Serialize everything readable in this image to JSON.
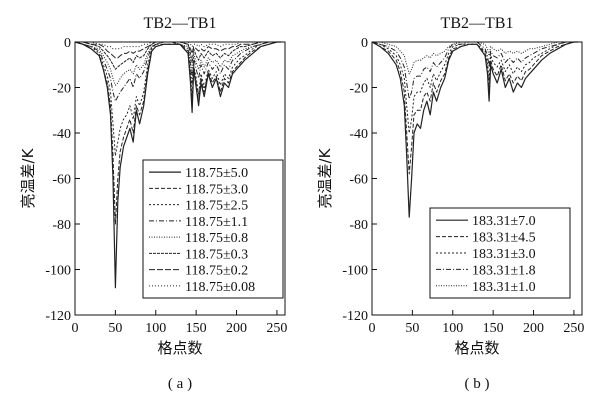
{
  "chart_data": [
    {
      "type": "line",
      "title": "TB2—TB1",
      "xlabel": "格点数",
      "ylabel": "亮温差/K",
      "caption": "( a )",
      "xlim": [
        0,
        260
      ],
      "ylim": [
        -120,
        0
      ],
      "xticks": [
        "0",
        "50",
        "100",
        "150",
        "200",
        "250"
      ],
      "yticks": [
        "0",
        "-20",
        "-40",
        "-60",
        "-80",
        "-100",
        "-120"
      ],
      "legend_position": "right",
      "x": [
        0,
        10,
        20,
        30,
        35,
        40,
        44,
        47,
        50,
        53,
        56,
        60,
        64,
        68,
        72,
        76,
        80,
        85,
        90,
        95,
        100,
        110,
        120,
        130,
        140,
        143,
        145,
        147,
        150,
        153,
        156,
        160,
        165,
        170,
        175,
        180,
        185,
        190,
        195,
        200,
        205,
        210,
        220,
        230,
        240,
        250,
        255
      ],
      "series": [
        {
          "name": "118.75±5.0",
          "values": [
            0,
            -1,
            -3,
            -6,
            -12,
            -20,
            -32,
            -60,
            -108,
            -70,
            -55,
            -46,
            -42,
            -38,
            -44,
            -30,
            -36,
            -28,
            -14,
            -4,
            -2,
            -1,
            -1,
            -1,
            -5,
            -18,
            -31,
            -12,
            -20,
            -28,
            -18,
            -24,
            -14,
            -20,
            -16,
            -24,
            -18,
            -20,
            -14,
            -12,
            -10,
            -8,
            -5,
            -2,
            -1,
            0,
            0
          ]
        },
        {
          "name": "118.75±3.0",
          "values": [
            0,
            -1,
            -3,
            -6,
            -12,
            -18,
            -28,
            -50,
            -80,
            -60,
            -48,
            -42,
            -38,
            -34,
            -40,
            -28,
            -32,
            -26,
            -12,
            -4,
            -2,
            -1,
            -1,
            -1,
            -5,
            -16,
            -28,
            -11,
            -18,
            -26,
            -16,
            -22,
            -13,
            -18,
            -15,
            -22,
            -16,
            -18,
            -13,
            -11,
            -9,
            -7,
            -4,
            -2,
            -1,
            0,
            0
          ]
        },
        {
          "name": "118.75±2.5",
          "values": [
            0,
            -1,
            -2,
            -5,
            -10,
            -15,
            -22,
            -36,
            -50,
            -44,
            -38,
            -34,
            -32,
            -28,
            -34,
            -24,
            -28,
            -22,
            -10,
            -3,
            -1,
            -1,
            -1,
            -1,
            -4,
            -14,
            -25,
            -10,
            -16,
            -23,
            -14,
            -20,
            -12,
            -16,
            -13,
            -19,
            -14,
            -16,
            -11,
            -9,
            -7,
            -6,
            -3,
            -1,
            0,
            0,
            0
          ]
        },
        {
          "name": "118.75±1.1",
          "values": [
            0,
            -1,
            -2,
            -4,
            -8,
            -12,
            -16,
            -22,
            -26,
            -24,
            -22,
            -20,
            -18,
            -16,
            -20,
            -14,
            -16,
            -13,
            -7,
            -2,
            -1,
            0,
            0,
            -1,
            -3,
            -10,
            -18,
            -7,
            -12,
            -16,
            -10,
            -14,
            -9,
            -12,
            -10,
            -14,
            -10,
            -12,
            -8,
            -7,
            -5,
            -4,
            -2,
            -1,
            0,
            0,
            0
          ]
        },
        {
          "name": "118.75±0.8",
          "values": [
            0,
            -1,
            -2,
            -3,
            -6,
            -9,
            -12,
            -16,
            -19,
            -18,
            -16,
            -14,
            -13,
            -12,
            -14,
            -10,
            -12,
            -10,
            -5,
            -2,
            -1,
            0,
            0,
            -1,
            -2,
            -8,
            -14,
            -5,
            -9,
            -12,
            -8,
            -11,
            -7,
            -9,
            -8,
            -11,
            -8,
            -9,
            -6,
            -5,
            -4,
            -3,
            -2,
            -1,
            0,
            0,
            0
          ]
        },
        {
          "name": "118.75±0.3",
          "values": [
            0,
            0,
            -1,
            -2,
            -4,
            -6,
            -8,
            -10,
            -12,
            -11,
            -10,
            -9,
            -8,
            -7,
            -9,
            -6,
            -7,
            -6,
            -3,
            -1,
            0,
            0,
            0,
            0,
            -1,
            -5,
            -9,
            -3,
            -6,
            -8,
            -5,
            -7,
            -4,
            -6,
            -5,
            -7,
            -5,
            -6,
            -4,
            -3,
            -2,
            -2,
            -1,
            0,
            0,
            0,
            0
          ]
        },
        {
          "name": "118.75±0.2",
          "values": [
            0,
            0,
            -1,
            -1,
            -2,
            -4,
            -5,
            -6,
            -7,
            -7,
            -6,
            -5,
            -5,
            -4,
            -5,
            -4,
            -4,
            -3,
            -2,
            -1,
            0,
            0,
            0,
            0,
            -1,
            -3,
            -5,
            -2,
            -3,
            -4,
            -3,
            -4,
            -2,
            -3,
            -3,
            -4,
            -3,
            -3,
            -2,
            -2,
            -1,
            -1,
            -1,
            0,
            0,
            0,
            0
          ]
        },
        {
          "name": "118.75±0.08",
          "values": [
            0,
            0,
            0,
            -1,
            -1,
            -2,
            -2,
            -3,
            -3,
            -3,
            -3,
            -2,
            -2,
            -2,
            -2,
            -2,
            -2,
            -1,
            -1,
            0,
            0,
            0,
            0,
            0,
            0,
            -1,
            -2,
            -1,
            -1,
            -2,
            -1,
            -2,
            -1,
            -1,
            -1,
            -2,
            -1,
            -1,
            -1,
            -1,
            0,
            0,
            0,
            0,
            0,
            0,
            0
          ]
        }
      ]
    },
    {
      "type": "line",
      "title": "TB2—TB1",
      "xlabel": "格点数",
      "ylabel": "亮温差/K",
      "caption": "( b )",
      "xlim": [
        0,
        260
      ],
      "ylim": [
        -120,
        0
      ],
      "xticks": [
        "0",
        "50",
        "100",
        "150",
        "200",
        "250"
      ],
      "yticks": [
        "0",
        "-20",
        "-40",
        "-60",
        "-80",
        "-100",
        "-120"
      ],
      "legend_position": "bottom-right",
      "x": [
        0,
        10,
        20,
        30,
        35,
        40,
        43,
        46,
        49,
        52,
        56,
        60,
        64,
        68,
        72,
        76,
        80,
        85,
        90,
        95,
        100,
        110,
        120,
        130,
        140,
        143,
        145,
        147,
        150,
        155,
        160,
        165,
        170,
        175,
        180,
        185,
        190,
        195,
        200,
        210,
        220,
        230,
        240,
        250,
        255
      ],
      "series": [
        {
          "name": "183.31±7.0",
          "values": [
            0,
            -2,
            -5,
            -10,
            -16,
            -28,
            -50,
            -77,
            -60,
            -40,
            -36,
            -38,
            -30,
            -26,
            -32,
            -22,
            -26,
            -20,
            -16,
            -8,
            -4,
            -2,
            -1,
            -1,
            -6,
            -14,
            -26,
            -10,
            -14,
            -18,
            -12,
            -20,
            -16,
            -22,
            -18,
            -20,
            -16,
            -14,
            -12,
            -8,
            -5,
            -3,
            -1,
            0,
            0
          ]
        },
        {
          "name": "183.31±4.5",
          "values": [
            0,
            -2,
            -4,
            -8,
            -13,
            -22,
            -40,
            -58,
            -46,
            -32,
            -30,
            -30,
            -24,
            -22,
            -26,
            -18,
            -22,
            -17,
            -14,
            -7,
            -3,
            -2,
            -1,
            -1,
            -5,
            -12,
            -22,
            -8,
            -12,
            -15,
            -10,
            -17,
            -14,
            -18,
            -15,
            -17,
            -13,
            -12,
            -10,
            -6,
            -4,
            -2,
            -1,
            0,
            0
          ]
        },
        {
          "name": "183.31±3.0",
          "values": [
            0,
            -1,
            -3,
            -6,
            -10,
            -16,
            -28,
            -40,
            -34,
            -24,
            -22,
            -22,
            -18,
            -16,
            -20,
            -14,
            -17,
            -13,
            -10,
            -5,
            -2,
            -1,
            -1,
            -1,
            -4,
            -9,
            -17,
            -6,
            -9,
            -11,
            -8,
            -13,
            -10,
            -14,
            -11,
            -13,
            -10,
            -9,
            -7,
            -5,
            -3,
            -1,
            0,
            0,
            0
          ]
        },
        {
          "name": "183.31±1.8",
          "values": [
            0,
            -1,
            -2,
            -4,
            -7,
            -11,
            -18,
            -25,
            -22,
            -16,
            -15,
            -15,
            -12,
            -11,
            -13,
            -9,
            -11,
            -9,
            -7,
            -3,
            -1,
            -1,
            0,
            0,
            -3,
            -6,
            -11,
            -4,
            -6,
            -7,
            -5,
            -9,
            -7,
            -9,
            -7,
            -9,
            -7,
            -6,
            -5,
            -3,
            -2,
            -1,
            0,
            0,
            0
          ]
        },
        {
          "name": "183.31±1.0",
          "values": [
            0,
            0,
            -1,
            -2,
            -4,
            -6,
            -10,
            -14,
            -12,
            -9,
            -8,
            -8,
            -7,
            -6,
            -7,
            -5,
            -6,
            -5,
            -4,
            -2,
            -1,
            0,
            0,
            0,
            -1,
            -3,
            -6,
            -2,
            -3,
            -4,
            -3,
            -5,
            -4,
            -5,
            -4,
            -5,
            -4,
            -3,
            -3,
            -2,
            -1,
            0,
            0,
            0,
            0
          ]
        }
      ]
    }
  ]
}
